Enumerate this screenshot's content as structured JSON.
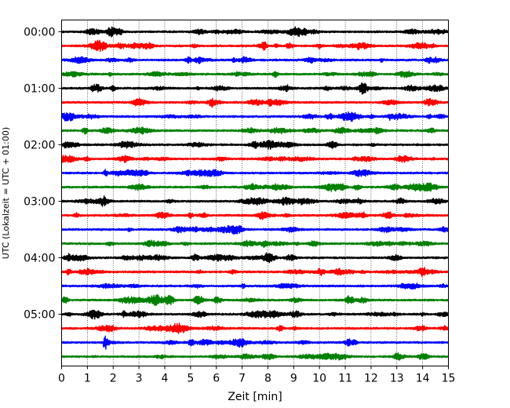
{
  "chart_data": {
    "type": "line",
    "title": "",
    "xlabel": "Zeit  [min]",
    "ylabel": "UTC (Lokalzeit = UTC + 01:00)",
    "xlim": [
      0,
      15
    ],
    "x_ticks": [
      0,
      1,
      2,
      3,
      4,
      5,
      6,
      7,
      8,
      9,
      10,
      11,
      12,
      13,
      14,
      15
    ],
    "x_tick_labels": [
      "0",
      "1",
      "2",
      "3",
      "4",
      "5",
      "6",
      "7",
      "8",
      "9",
      "10",
      "11",
      "12",
      "13",
      "14",
      "15"
    ],
    "y_tick_labels": [
      "00:00",
      "01:00",
      "02:00",
      "03:00",
      "04:00",
      "05:00"
    ],
    "trace_interval_minutes": 15,
    "traces_per_hour": 4,
    "grid": "x-only, dotted",
    "trace_colors": [
      "#000000",
      "#ff0000",
      "#0000ff",
      "#008000"
    ],
    "series": [
      {
        "start": "00:00",
        "color": "#000000"
      },
      {
        "start": "00:15",
        "color": "#ff0000"
      },
      {
        "start": "00:30",
        "color": "#0000ff"
      },
      {
        "start": "00:45",
        "color": "#008000"
      },
      {
        "start": "01:00",
        "color": "#000000"
      },
      {
        "start": "01:15",
        "color": "#ff0000"
      },
      {
        "start": "01:30",
        "color": "#0000ff"
      },
      {
        "start": "01:45",
        "color": "#008000"
      },
      {
        "start": "02:00",
        "color": "#000000"
      },
      {
        "start": "02:15",
        "color": "#ff0000"
      },
      {
        "start": "02:30",
        "color": "#0000ff"
      },
      {
        "start": "02:45",
        "color": "#008000"
      },
      {
        "start": "03:00",
        "color": "#000000"
      },
      {
        "start": "03:15",
        "color": "#ff0000"
      },
      {
        "start": "03:30",
        "color": "#0000ff"
      },
      {
        "start": "03:45",
        "color": "#008000"
      },
      {
        "start": "04:00",
        "color": "#000000"
      },
      {
        "start": "04:15",
        "color": "#ff0000"
      },
      {
        "start": "04:30",
        "color": "#0000ff"
      },
      {
        "start": "04:45",
        "color": "#008000"
      },
      {
        "start": "05:00",
        "color": "#000000"
      },
      {
        "start": "05:15",
        "color": "#ff0000"
      },
      {
        "start": "05:30",
        "color": "#0000ff",
        "event": {
          "time_min": 1.7,
          "amplitude": "large"
        }
      },
      {
        "start": "05:45",
        "color": "#008000"
      }
    ]
  }
}
